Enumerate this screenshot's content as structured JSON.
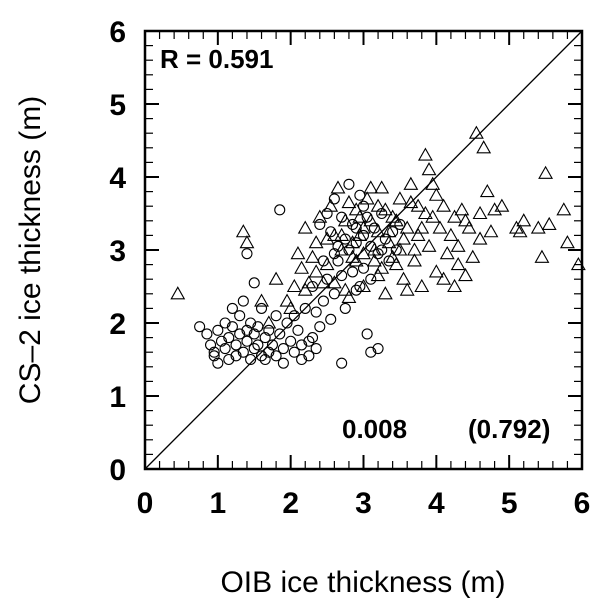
{
  "chart_data": {
    "type": "scatter",
    "xlabel": "OIB ice thickness (m)",
    "ylabel": "CS–2 ice thickness (m)",
    "xlim": [
      0,
      6
    ],
    "ylim": [
      0,
      6
    ],
    "x_ticks": [
      "0",
      "1",
      "2",
      "3",
      "4",
      "5",
      "6"
    ],
    "y_ticks": [
      "0",
      "1",
      "2",
      "3",
      "4",
      "5",
      "6"
    ],
    "reference_line": {
      "type": "one-to-one",
      "from": [
        0,
        0
      ],
      "to": [
        6,
        6
      ]
    },
    "grid": false,
    "annotations": {
      "r_text": "R = 0.591",
      "stat_1": "0.008",
      "stat_2": "(0.792)"
    },
    "series": [
      {
        "marker": "circle",
        "points": [
          [
            0.75,
            1.95
          ],
          [
            0.85,
            1.85
          ],
          [
            0.9,
            1.7
          ],
          [
            0.95,
            1.6
          ],
          [
            1.0,
            1.9
          ],
          [
            1.0,
            1.45
          ],
          [
            1.05,
            1.75
          ],
          [
            1.1,
            2.0
          ],
          [
            1.1,
            1.65
          ],
          [
            1.15,
            1.8
          ],
          [
            1.2,
            2.2
          ],
          [
            1.2,
            1.95
          ],
          [
            1.25,
            1.7
          ],
          [
            1.25,
            1.55
          ],
          [
            1.3,
            2.1
          ],
          [
            1.3,
            1.85
          ],
          [
            1.35,
            1.6
          ],
          [
            1.35,
            2.3
          ],
          [
            1.4,
            1.9
          ],
          [
            1.4,
            1.75
          ],
          [
            1.45,
            1.5
          ],
          [
            1.45,
            2.0
          ],
          [
            1.5,
            1.65
          ],
          [
            1.5,
            1.85
          ],
          [
            1.55,
            1.7
          ],
          [
            1.55,
            1.95
          ],
          [
            1.6,
            1.55
          ],
          [
            1.6,
            2.2
          ],
          [
            1.65,
            1.8
          ],
          [
            1.7,
            1.6
          ],
          [
            1.7,
            1.9
          ],
          [
            1.75,
            1.7
          ],
          [
            1.8,
            2.1
          ],
          [
            1.8,
            1.55
          ],
          [
            1.85,
            1.85
          ],
          [
            1.9,
            1.65
          ],
          [
            1.95,
            2.0
          ],
          [
            2.0,
            1.75
          ],
          [
            2.05,
            1.6
          ],
          [
            2.1,
            1.9
          ],
          [
            2.15,
            1.7
          ],
          [
            2.2,
            2.2
          ],
          [
            2.25,
            1.55
          ],
          [
            2.3,
            1.8
          ],
          [
            2.3,
            2.5
          ],
          [
            2.35,
            1.65
          ],
          [
            2.4,
            1.95
          ],
          [
            2.45,
            2.3
          ],
          [
            2.5,
            2.6
          ],
          [
            2.55,
            2.05
          ],
          [
            2.6,
            2.4
          ],
          [
            2.65,
            2.85
          ],
          [
            2.7,
            1.45
          ],
          [
            2.75,
            2.2
          ],
          [
            2.8,
            3.0
          ],
          [
            2.85,
            2.7
          ],
          [
            2.9,
            3.3
          ],
          [
            2.95,
            2.5
          ],
          [
            3.0,
            3.6
          ],
          [
            3.05,
            1.85
          ],
          [
            3.1,
            1.6
          ],
          [
            3.2,
            1.65
          ],
          [
            3.25,
            3.0
          ],
          [
            1.4,
            2.95
          ],
          [
            1.5,
            2.55
          ],
          [
            1.85,
            3.55
          ],
          [
            2.4,
            3.35
          ],
          [
            2.5,
            3.5
          ],
          [
            2.55,
            3.25
          ],
          [
            2.6,
            3.7
          ],
          [
            2.65,
            3.05
          ],
          [
            2.7,
            3.45
          ],
          [
            2.75,
            3.15
          ],
          [
            2.8,
            3.9
          ],
          [
            2.85,
            3.35
          ],
          [
            2.9,
            3.1
          ],
          [
            2.95,
            3.75
          ],
          [
            3.0,
            3.2
          ],
          [
            3.05,
            3.45
          ],
          [
            3.1,
            3.05
          ],
          [
            3.15,
            3.3
          ],
          [
            3.2,
            2.95
          ],
          [
            3.25,
            3.5
          ],
          [
            3.3,
            3.15
          ],
          [
            3.35,
            2.85
          ],
          [
            3.4,
            3.25
          ],
          [
            3.45,
            3.0
          ],
          [
            3.5,
            3.35
          ],
          [
            2.6,
            2.95
          ],
          [
            2.7,
            2.65
          ],
          [
            2.9,
            2.45
          ],
          [
            3.0,
            2.75
          ],
          [
            3.1,
            2.6
          ],
          [
            2.45,
            2.85
          ],
          [
            2.35,
            2.15
          ],
          [
            2.05,
            2.1
          ],
          [
            0.95,
            1.55
          ],
          [
            1.15,
            1.5
          ],
          [
            1.65,
            1.5
          ],
          [
            1.9,
            1.45
          ],
          [
            2.25,
            1.75
          ],
          [
            2.15,
            1.5
          ]
        ]
      },
      {
        "marker": "triangle",
        "points": [
          [
            0.45,
            2.4
          ],
          [
            1.35,
            3.25
          ],
          [
            1.4,
            3.1
          ],
          [
            1.6,
            2.3
          ],
          [
            1.7,
            2.0
          ],
          [
            1.8,
            2.6
          ],
          [
            2.0,
            2.2
          ],
          [
            2.1,
            2.95
          ],
          [
            2.2,
            3.3
          ],
          [
            2.3,
            2.9
          ],
          [
            2.35,
            3.1
          ],
          [
            2.4,
            3.45
          ],
          [
            2.5,
            2.8
          ],
          [
            2.55,
            3.6
          ],
          [
            2.6,
            3.2
          ],
          [
            2.65,
            3.85
          ],
          [
            2.7,
            3.0
          ],
          [
            2.75,
            3.4
          ],
          [
            2.8,
            3.65
          ],
          [
            2.85,
            2.9
          ],
          [
            2.9,
            3.55
          ],
          [
            2.95,
            3.2
          ],
          [
            3.0,
            2.95
          ],
          [
            3.05,
            3.7
          ],
          [
            3.1,
            3.4
          ],
          [
            3.15,
            3.0
          ],
          [
            3.2,
            3.25
          ],
          [
            3.25,
            2.75
          ],
          [
            3.3,
            3.55
          ],
          [
            3.35,
            3.1
          ],
          [
            3.4,
            2.9
          ],
          [
            3.45,
            3.4
          ],
          [
            3.5,
            3.0
          ],
          [
            3.55,
            2.6
          ],
          [
            3.6,
            3.3
          ],
          [
            3.65,
            3.65
          ],
          [
            3.7,
            2.85
          ],
          [
            3.75,
            3.2
          ],
          [
            3.8,
            2.5
          ],
          [
            3.85,
            3.5
          ],
          [
            3.9,
            3.05
          ],
          [
            3.95,
            3.9
          ],
          [
            4.0,
            2.7
          ],
          [
            4.05,
            3.3
          ],
          [
            4.1,
            3.6
          ],
          [
            4.15,
            2.95
          ],
          [
            4.2,
            3.2
          ],
          [
            4.25,
            2.5
          ],
          [
            4.3,
            3.05
          ],
          [
            4.35,
            3.55
          ],
          [
            4.4,
            2.65
          ],
          [
            4.45,
            3.3
          ],
          [
            4.5,
            2.9
          ],
          [
            4.55,
            4.6
          ],
          [
            4.6,
            3.5
          ],
          [
            4.65,
            4.4
          ],
          [
            4.7,
            3.8
          ],
          [
            4.8,
            3.55
          ],
          [
            4.9,
            3.6
          ],
          [
            5.1,
            3.3
          ],
          [
            5.15,
            3.25
          ],
          [
            5.2,
            3.4
          ],
          [
            5.4,
            3.3
          ],
          [
            5.45,
            2.9
          ],
          [
            5.5,
            4.05
          ],
          [
            5.55,
            3.35
          ],
          [
            5.75,
            3.55
          ],
          [
            5.8,
            3.1
          ],
          [
            5.95,
            2.8
          ],
          [
            3.85,
            4.3
          ],
          [
            3.9,
            4.1
          ],
          [
            4.4,
            3.4
          ],
          [
            3.6,
            2.45
          ],
          [
            3.7,
            3.0
          ],
          [
            3.2,
            2.65
          ],
          [
            3.0,
            2.5
          ],
          [
            2.8,
            2.35
          ],
          [
            2.45,
            2.55
          ],
          [
            2.25,
            2.55
          ],
          [
            2.6,
            2.55
          ],
          [
            3.3,
            2.4
          ],
          [
            3.45,
            2.8
          ],
          [
            3.5,
            3.7
          ],
          [
            3.25,
            3.85
          ],
          [
            2.95,
            3.45
          ],
          [
            3.8,
            3.3
          ],
          [
            4.0,
            3.75
          ],
          [
            4.25,
            3.45
          ],
          [
            2.2,
            2.45
          ],
          [
            1.95,
            2.3
          ],
          [
            2.05,
            2.5
          ],
          [
            2.15,
            2.75
          ],
          [
            3.65,
            3.9
          ],
          [
            3.1,
            3.85
          ],
          [
            2.75,
            2.45
          ],
          [
            4.1,
            2.6
          ],
          [
            4.3,
            2.8
          ],
          [
            3.0,
            3.3
          ],
          [
            2.7,
            3.2
          ],
          [
            3.4,
            3.45
          ],
          [
            2.9,
            2.85
          ],
          [
            3.55,
            3.15
          ],
          [
            3.2,
            3.6
          ],
          [
            2.5,
            3.15
          ],
          [
            2.35,
            2.7
          ],
          [
            4.6,
            3.15
          ],
          [
            4.75,
            3.25
          ],
          [
            3.95,
            3.45
          ],
          [
            3.75,
            3.6
          ],
          [
            3.15,
            2.85
          ],
          [
            3.35,
            3.25
          ],
          [
            2.85,
            3.1
          ]
        ]
      }
    ]
  }
}
